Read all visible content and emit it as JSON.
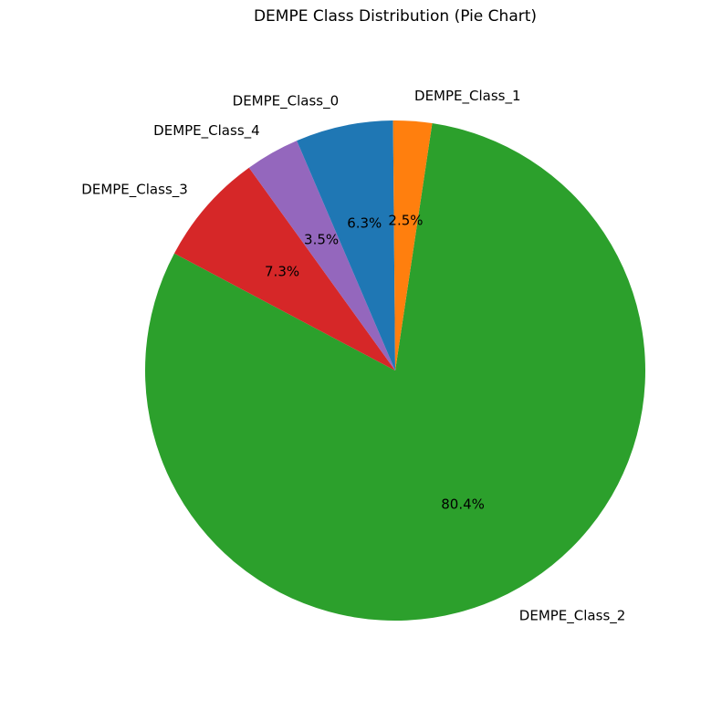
{
  "chart_data": {
    "type": "pie",
    "title": "DEMPE Class Distribution (Pie Chart)",
    "slices": [
      {
        "label": "DEMPE_Class_2",
        "value": 80.4,
        "pct_label": "80.4%",
        "color": "#2ca02c"
      },
      {
        "label": "DEMPE_Class_3",
        "value": 7.3,
        "pct_label": "7.3%",
        "color": "#d62728"
      },
      {
        "label": "DEMPE_Class_4",
        "value": 3.5,
        "pct_label": "3.5%",
        "color": "#9467bd"
      },
      {
        "label": "DEMPE_Class_0",
        "value": 6.3,
        "pct_label": "6.3%",
        "color": "#1f77b4"
      },
      {
        "label": "DEMPE_Class_1",
        "value": 2.5,
        "pct_label": "2.5%",
        "color": "#ff7f0e"
      }
    ]
  }
}
